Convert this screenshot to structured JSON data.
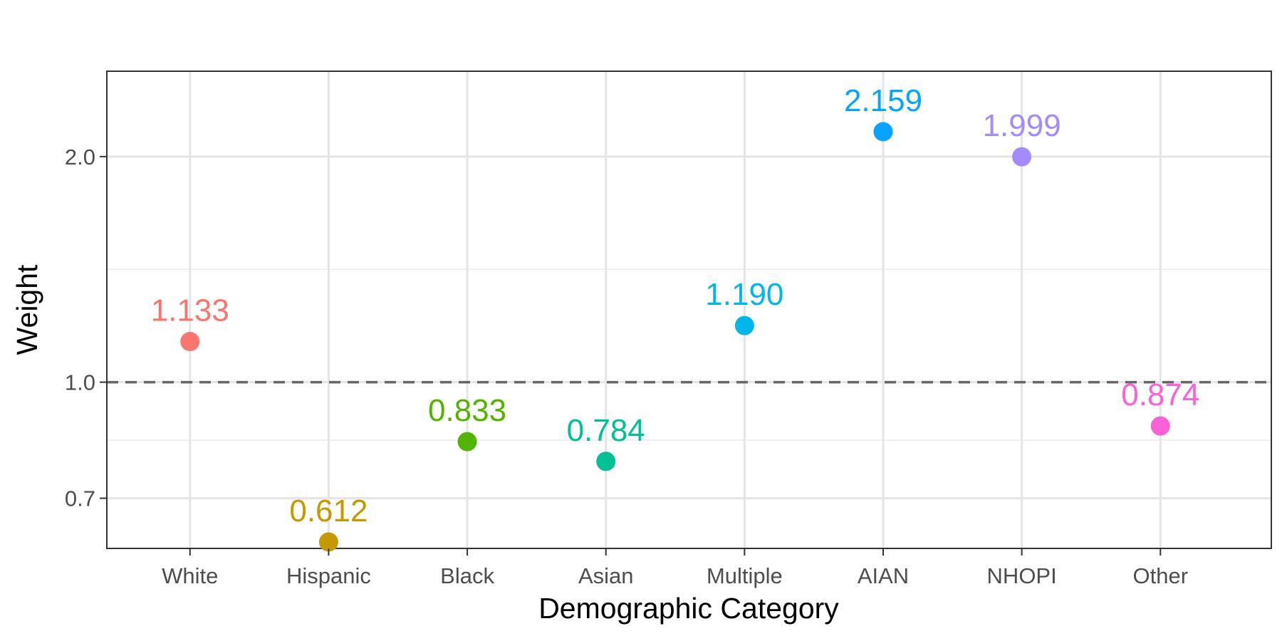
{
  "chart_data": {
    "type": "scatter",
    "xlabel": "Demographic Category",
    "ylabel": "Weight",
    "y_scale": "log",
    "ylim": [
      0.6,
      2.6
    ],
    "y_ticks": [
      {
        "value": 0.7,
        "label": "0.7"
      },
      {
        "value": 1.0,
        "label": "1.0"
      },
      {
        "value": 2.0,
        "label": "2.0"
      }
    ],
    "reference_line": {
      "y": 1.0,
      "style": "dashed",
      "color": "#666666"
    },
    "grid": true,
    "legend": "none",
    "points": [
      {
        "category": "White",
        "value": 1.133,
        "label": "1.133",
        "color": "#F8766D"
      },
      {
        "category": "Hispanic",
        "value": 0.612,
        "label": "0.612",
        "color": "#C49A00"
      },
      {
        "category": "Black",
        "value": 0.833,
        "label": "0.833",
        "color": "#53B400"
      },
      {
        "category": "Asian",
        "value": 0.784,
        "label": "0.784",
        "color": "#00C094"
      },
      {
        "category": "Multiple",
        "value": 1.19,
        "label": "1.190",
        "color": "#00B6EB"
      },
      {
        "category": "AIAN",
        "value": 2.159,
        "label": "2.159",
        "color": "#06A4FF"
      },
      {
        "category": "NHOPI",
        "value": 1.999,
        "label": "1.999",
        "color": "#A58AFF"
      },
      {
        "category": "Other",
        "value": 0.874,
        "label": "0.874",
        "color": "#FB61D7"
      }
    ]
  }
}
